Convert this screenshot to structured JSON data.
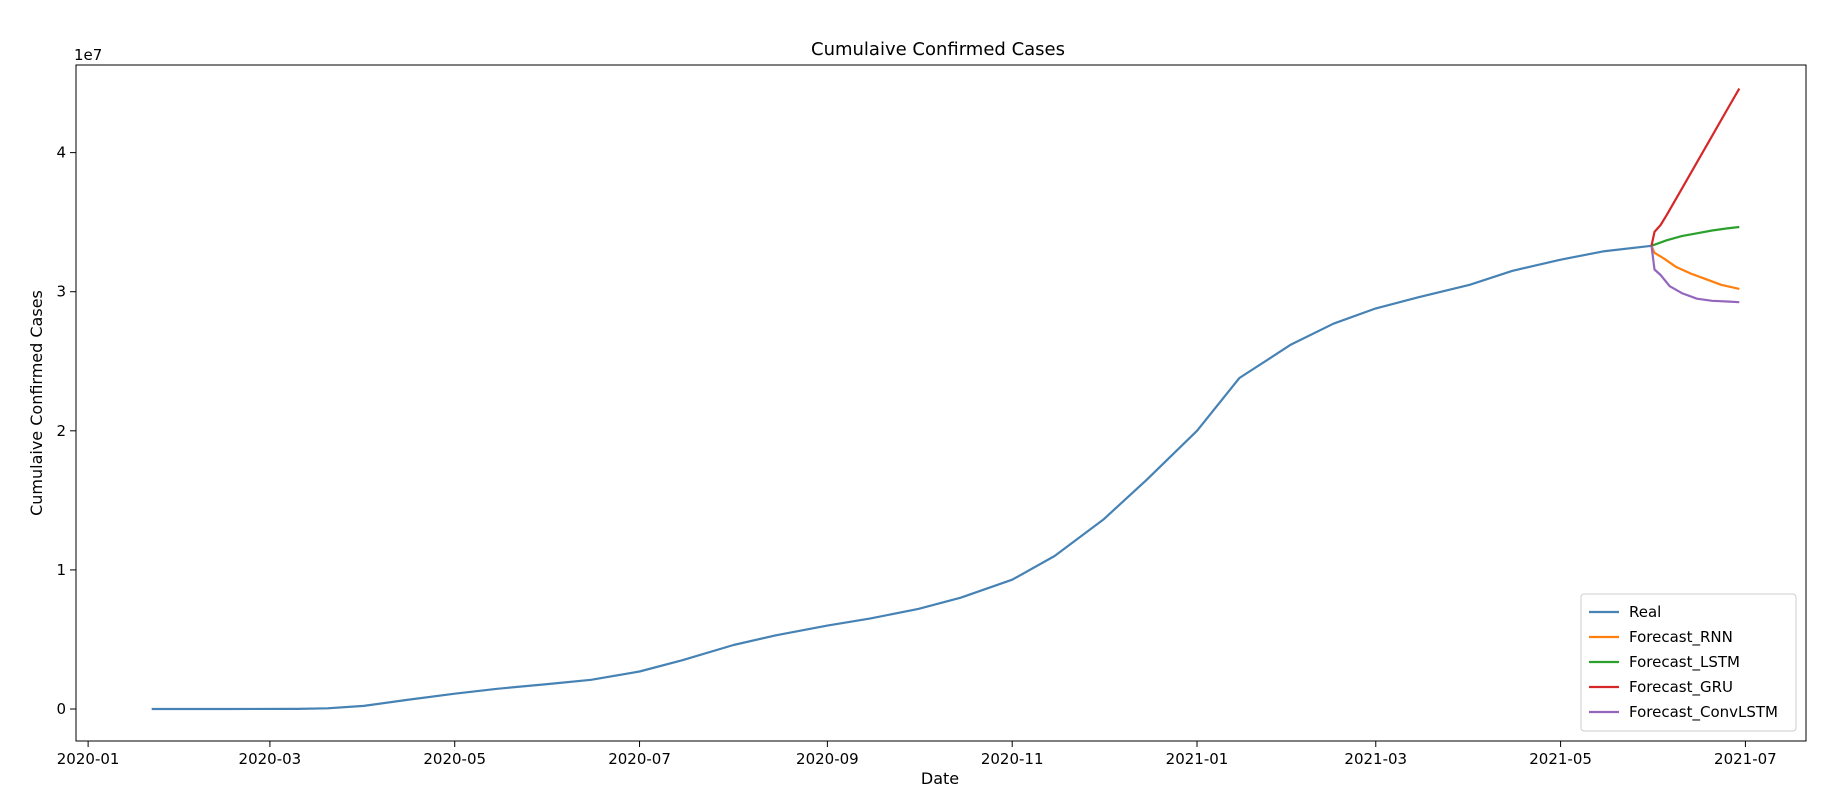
{
  "chart_data": {
    "type": "line",
    "title": "Cumulaive Confirmed Cases",
    "xlabel": "Date",
    "ylabel": "Cumulaive Confirmed Cases",
    "y_offset_text": "1e7",
    "xlim": [
      "2019-12-28",
      "2021-07-21"
    ],
    "ylim": [
      -2300000,
      46300000
    ],
    "x_ticks": [
      {
        "date": "2020-01-01",
        "label": "2020-01"
      },
      {
        "date": "2020-03-01",
        "label": "2020-03"
      },
      {
        "date": "2020-05-01",
        "label": "2020-05"
      },
      {
        "date": "2020-07-01",
        "label": "2020-07"
      },
      {
        "date": "2020-09-01",
        "label": "2020-09"
      },
      {
        "date": "2020-11-01",
        "label": "2020-11"
      },
      {
        "date": "2021-01-01",
        "label": "2021-01"
      },
      {
        "date": "2021-03-01",
        "label": "2021-03"
      },
      {
        "date": "2021-05-01",
        "label": "2021-05"
      },
      {
        "date": "2021-07-01",
        "label": "2021-07"
      }
    ],
    "y_ticks": [
      {
        "value": 0,
        "label": "0"
      },
      {
        "value": 10000000,
        "label": "1"
      },
      {
        "value": 20000000,
        "label": "2"
      },
      {
        "value": 30000000,
        "label": "3"
      },
      {
        "value": 40000000,
        "label": "4"
      }
    ],
    "grid": false,
    "legend_position": "lower-right",
    "series": [
      {
        "name": "Real",
        "color": "#4682b4",
        "points": [
          [
            "2020-01-22",
            0
          ],
          [
            "2020-02-15",
            0
          ],
          [
            "2020-03-10",
            10000
          ],
          [
            "2020-03-20",
            50000
          ],
          [
            "2020-04-01",
            220000
          ],
          [
            "2020-04-15",
            650000
          ],
          [
            "2020-05-01",
            1100000
          ],
          [
            "2020-05-15",
            1450000
          ],
          [
            "2020-06-01",
            1800000
          ],
          [
            "2020-06-15",
            2100000
          ],
          [
            "2020-07-01",
            2700000
          ],
          [
            "2020-07-15",
            3500000
          ],
          [
            "2020-08-01",
            4600000
          ],
          [
            "2020-08-15",
            5300000
          ],
          [
            "2020-09-01",
            6000000
          ],
          [
            "2020-09-15",
            6500000
          ],
          [
            "2020-10-01",
            7200000
          ],
          [
            "2020-10-15",
            8000000
          ],
          [
            "2020-11-01",
            9300000
          ],
          [
            "2020-11-15",
            11000000
          ],
          [
            "2020-12-01",
            13600000
          ],
          [
            "2020-12-15",
            16400000
          ],
          [
            "2021-01-01",
            20000000
          ],
          [
            "2021-01-15",
            23800000
          ],
          [
            "2021-02-01",
            26200000
          ],
          [
            "2021-02-15",
            27700000
          ],
          [
            "2021-03-01",
            28800000
          ],
          [
            "2021-03-15",
            29600000
          ],
          [
            "2021-04-01",
            30500000
          ],
          [
            "2021-04-15",
            31500000
          ],
          [
            "2021-05-01",
            32300000
          ],
          [
            "2021-05-15",
            32900000
          ],
          [
            "2021-05-31",
            33300000
          ]
        ]
      },
      {
        "name": "Forecast_RNN",
        "color": "#ff7f0e",
        "points": [
          [
            "2021-05-31",
            33300000
          ],
          [
            "2021-06-01",
            32800000
          ],
          [
            "2021-06-04",
            32400000
          ],
          [
            "2021-06-08",
            31800000
          ],
          [
            "2021-06-13",
            31300000
          ],
          [
            "2021-06-18",
            30900000
          ],
          [
            "2021-06-23",
            30500000
          ],
          [
            "2021-06-29",
            30200000
          ]
        ]
      },
      {
        "name": "Forecast_LSTM",
        "color": "#2ca02c",
        "points": [
          [
            "2021-05-31",
            33300000
          ],
          [
            "2021-06-05",
            33700000
          ],
          [
            "2021-06-10",
            34000000
          ],
          [
            "2021-06-15",
            34200000
          ],
          [
            "2021-06-20",
            34400000
          ],
          [
            "2021-06-25",
            34550000
          ],
          [
            "2021-06-29",
            34650000
          ]
        ]
      },
      {
        "name": "Forecast_GRU",
        "color": "#d62728",
        "points": [
          [
            "2021-05-31",
            33300000
          ],
          [
            "2021-06-01",
            34300000
          ],
          [
            "2021-06-03",
            34800000
          ],
          [
            "2021-06-05",
            35500000
          ],
          [
            "2021-06-10",
            37400000
          ],
          [
            "2021-06-15",
            39300000
          ],
          [
            "2021-06-20",
            41200000
          ],
          [
            "2021-06-25",
            43100000
          ],
          [
            "2021-06-29",
            44600000
          ]
        ]
      },
      {
        "name": "Forecast_ConvLSTM",
        "color": "#9467bd",
        "points": [
          [
            "2021-05-31",
            33300000
          ],
          [
            "2021-06-01",
            31600000
          ],
          [
            "2021-06-03",
            31200000
          ],
          [
            "2021-06-06",
            30400000
          ],
          [
            "2021-06-10",
            29900000
          ],
          [
            "2021-06-15",
            29500000
          ],
          [
            "2021-06-20",
            29350000
          ],
          [
            "2021-06-25",
            29300000
          ],
          [
            "2021-06-29",
            29250000
          ]
        ]
      }
    ]
  }
}
